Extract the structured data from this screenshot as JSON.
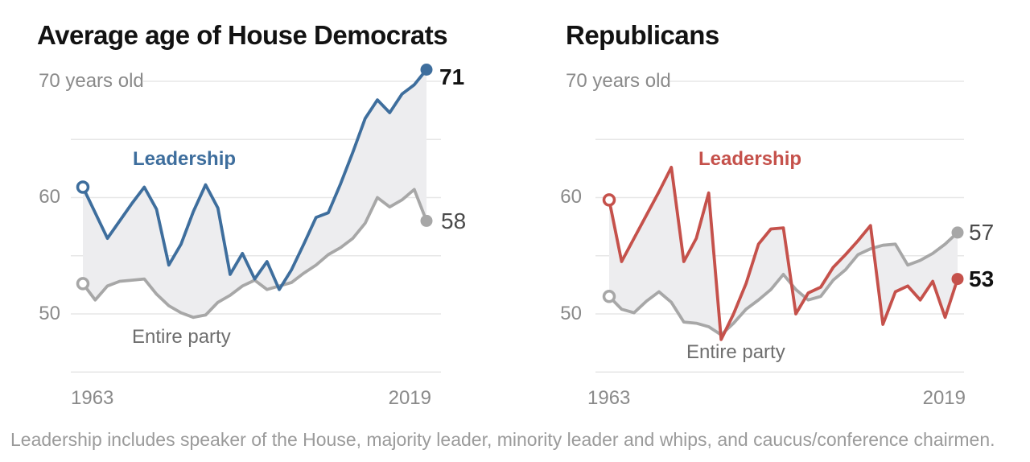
{
  "footnote": "Leadership includes speaker of the House, majority leader, minority leader and whips, and caucus/conference chairmen.",
  "colors": {
    "dem_blue": "#3e6e9d",
    "rep_red": "#c5514b",
    "party_gray": "#a7a7a7",
    "band_fill": "#ededef",
    "gridline": "#e7e7e7",
    "axis_text": "#8a8a8a",
    "label_dark": "#121212",
    "label_gray": "#4a4a4a",
    "footnote_gray": "#9b9b9b"
  },
  "chart_data": [
    {
      "type": "line",
      "title": "Average age of House Democrats",
      "x": [
        1963,
        1965,
        1967,
        1969,
        1971,
        1973,
        1975,
        1977,
        1979,
        1981,
        1983,
        1985,
        1987,
        1989,
        1991,
        1993,
        1995,
        1997,
        1999,
        2001,
        2003,
        2005,
        2007,
        2009,
        2011,
        2013,
        2015,
        2017,
        2019
      ],
      "series": [
        {
          "name": "Leadership",
          "color": "#3e6e9d",
          "values": [
            60.9,
            58.7,
            56.5,
            58.0,
            59.5,
            60.9,
            59.0,
            54.2,
            56.0,
            58.8,
            61.1,
            59.1,
            53.4,
            55.2,
            53.0,
            54.5,
            52.1,
            53.8,
            56.0,
            58.3,
            58.7,
            61.2,
            63.9,
            66.8,
            68.4,
            67.3,
            68.9,
            69.7,
            71
          ]
        },
        {
          "name": "Entire party",
          "color": "#a7a7a7",
          "values": [
            52.6,
            51.2,
            52.4,
            52.8,
            52.9,
            53.0,
            51.7,
            50.7,
            50.1,
            49.7,
            49.9,
            51.0,
            51.6,
            52.4,
            52.9,
            52.1,
            52.4,
            52.7,
            53.5,
            54.2,
            55.1,
            55.7,
            56.5,
            57.8,
            60.0,
            59.2,
            59.8,
            60.7,
            58
          ]
        }
      ],
      "band_between_series": true,
      "ylim": [
        45,
        72
      ],
      "y_gridlines": [
        70,
        65,
        60,
        55,
        50,
        45
      ],
      "y_axis_top_label": "70 years old",
      "y_ticks": [
        {
          "value": 60,
          "text": "60"
        },
        {
          "value": 50,
          "text": "50"
        }
      ],
      "x_ticks": [
        "1963",
        "2019"
      ],
      "end_labels": {
        "leadership": "71",
        "party": "58"
      },
      "legend_position": "labels-on-chart",
      "grid": true
    },
    {
      "type": "line",
      "title": "Republicans",
      "x": [
        1963,
        1965,
        1967,
        1969,
        1971,
        1973,
        1975,
        1977,
        1979,
        1981,
        1983,
        1985,
        1987,
        1989,
        1991,
        1993,
        1995,
        1997,
        1999,
        2001,
        2003,
        2005,
        2007,
        2009,
        2011,
        2013,
        2015,
        2017,
        2019
      ],
      "series": [
        {
          "name": "Leadership",
          "color": "#c5514b",
          "values": [
            59.8,
            54.5,
            56.5,
            58.5,
            60.5,
            62.6,
            54.5,
            56.5,
            60.4,
            47.8,
            50.0,
            52.6,
            56.0,
            57.3,
            57.4,
            50.0,
            51.8,
            52.3,
            54.0,
            55.1,
            56.3,
            57.6,
            49.1,
            51.9,
            52.4,
            51.2,
            52.8,
            49.7,
            53
          ]
        },
        {
          "name": "Entire party",
          "color": "#a7a7a7",
          "values": [
            51.5,
            50.4,
            50.1,
            51.1,
            51.9,
            51.0,
            49.3,
            49.2,
            48.9,
            48.2,
            49.2,
            50.4,
            51.2,
            52.1,
            53.4,
            52.1,
            51.2,
            51.5,
            52.9,
            53.8,
            55.1,
            55.6,
            55.9,
            56.0,
            54.2,
            54.6,
            55.2,
            56.0,
            57
          ]
        }
      ],
      "band_between_series": true,
      "ylim": [
        45,
        72
      ],
      "y_gridlines": [
        70,
        65,
        60,
        55,
        50,
        45
      ],
      "y_axis_top_label": "70 years old",
      "y_ticks": [
        {
          "value": 60,
          "text": "60"
        },
        {
          "value": 50,
          "text": "50"
        }
      ],
      "x_ticks": [
        "1963",
        "2019"
      ],
      "end_labels": {
        "leadership": "53",
        "party": "57"
      },
      "legend_position": "labels-on-chart",
      "grid": true
    }
  ]
}
